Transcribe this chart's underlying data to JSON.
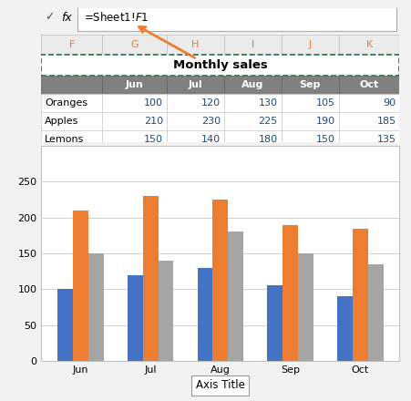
{
  "title": "Monthly sales",
  "formula_bar_text": "=Sheet1!$F$1",
  "col_headers": [
    "F",
    "G",
    "H",
    "I",
    "J",
    "K"
  ],
  "table_data": {
    "Oranges": [
      100,
      120,
      130,
      105,
      90
    ],
    "Apples": [
      210,
      230,
      225,
      190,
      185
    ],
    "Lemons": [
      150,
      140,
      180,
      150,
      135
    ]
  },
  "months": [
    "Jun",
    "Jul",
    "Aug",
    "Sep",
    "Oct"
  ],
  "series": [
    "Oranges",
    "Apples",
    "Lemons"
  ],
  "colors": {
    "Oranges": "#4472C4",
    "Apples": "#ED7D31",
    "Lemons": "#A5A5A5"
  },
  "axis_title": "Axis Title",
  "ylim": [
    0,
    300
  ],
  "yticks": [
    0,
    50,
    100,
    150,
    200,
    250
  ],
  "grid_color": "#D0D0D0",
  "arrow_color": "#ED7D31",
  "col_header_color": "#ED7D31",
  "data_text_color": "#1F497D"
}
